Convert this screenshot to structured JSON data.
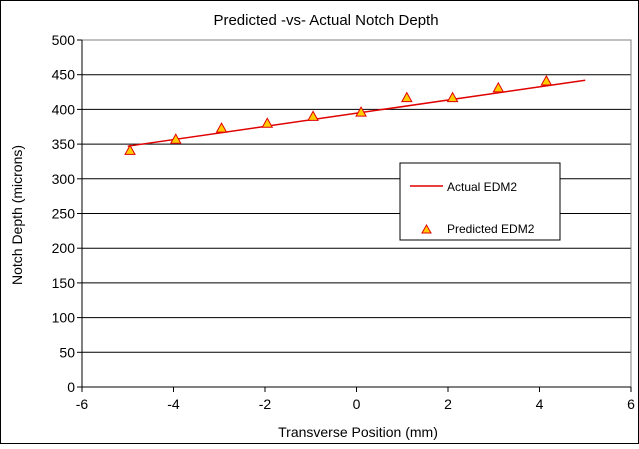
{
  "chart_data": {
    "type": "scatter",
    "title": "Predicted -vs- Actual Notch Depth",
    "xlabel": "Transverse Position (mm)",
    "ylabel": "Notch Depth (microns)",
    "xlim": [
      -6,
      6
    ],
    "ylim": [
      0,
      500
    ],
    "x_ticks": [
      "-6",
      "-4",
      "-2",
      "0",
      "2",
      "4",
      "6"
    ],
    "y_ticks": [
      "0",
      "50",
      "100",
      "150",
      "200",
      "250",
      "300",
      "350",
      "400",
      "450",
      "500"
    ],
    "grid": "horizontal",
    "legend_position": "right",
    "series": [
      {
        "name": "Actual EDM2",
        "kind": "line",
        "color": "#e00000",
        "points": [
          [
            -5,
            347
          ],
          [
            5,
            442
          ]
        ]
      },
      {
        "name": "Predicted EDM2",
        "kind": "marker",
        "marker": "triangle",
        "color": "#ffcc00",
        "edge_color": "#e00000",
        "points": [
          [
            -4.95,
            341
          ],
          [
            -3.95,
            357
          ],
          [
            -2.95,
            373
          ],
          [
            -1.95,
            380
          ],
          [
            -0.95,
            390
          ],
          [
            0.1,
            396
          ],
          [
            1.1,
            417
          ],
          [
            2.1,
            417
          ],
          [
            3.1,
            431
          ],
          [
            4.15,
            441
          ]
        ]
      }
    ]
  }
}
